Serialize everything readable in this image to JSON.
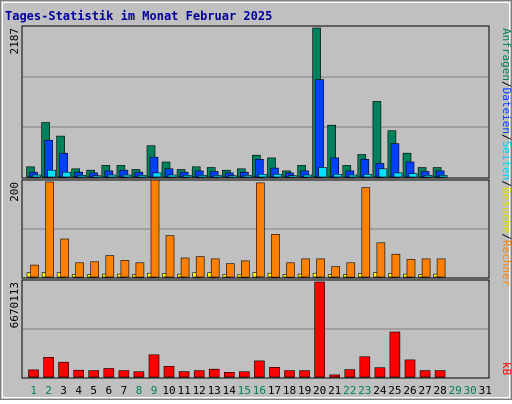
{
  "title": "Tages-Statistik im Monat Februar 2025",
  "colors": {
    "background": "#c0c0c0",
    "plot_background": "#c0c0c0",
    "grid": "#808080",
    "title": "#0000a0",
    "anfragen": "#00805c",
    "dateien": "#0040ff",
    "seiten": "#00e0ff",
    "besuche": "#ffff00",
    "rechner": "#ff8000",
    "kb": "#ff0000",
    "weekend_day": "#00805c",
    "weekday": "#000000"
  },
  "legend": {
    "top": [
      "Anfragen",
      "Dateien",
      "Seiten",
      "Besuche"
    ],
    "middle": [
      "Rechner"
    ],
    "bottom": [
      "kB"
    ],
    "separator": "/"
  },
  "chart_data": [
    {
      "type": "bar",
      "panel": "top",
      "ymax_label": "2187",
      "ylim": [
        0,
        2187
      ],
      "categories": [
        "1",
        "2",
        "3",
        "4",
        "5",
        "6",
        "7",
        "8",
        "9",
        "10",
        "11",
        "12",
        "13",
        "14",
        "15",
        "16",
        "17",
        "18",
        "19",
        "20",
        "21",
        "22",
        "23",
        "24",
        "25",
        "26",
        "27",
        "28",
        "29",
        "30",
        "31"
      ],
      "series": [
        {
          "name": "Anfragen",
          "values": [
            150,
            800,
            600,
            120,
            100,
            170,
            170,
            110,
            460,
            220,
            110,
            150,
            140,
            100,
            120,
            320,
            280,
            90,
            170,
            2187,
            760,
            170,
            330,
            1110,
            680,
            350,
            140,
            140,
            0,
            0,
            0
          ]
        },
        {
          "name": "Dateien",
          "values": [
            70,
            540,
            350,
            70,
            60,
            90,
            100,
            70,
            290,
            120,
            70,
            90,
            80,
            60,
            70,
            260,
            130,
            60,
            90,
            1430,
            280,
            90,
            260,
            200,
            490,
            220,
            80,
            90,
            0,
            0,
            0
          ]
        },
        {
          "name": "Seiten",
          "values": [
            30,
            100,
            70,
            25,
            20,
            30,
            30,
            25,
            60,
            30,
            25,
            25,
            25,
            20,
            25,
            40,
            40,
            20,
            30,
            140,
            40,
            30,
            40,
            120,
            60,
            50,
            25,
            25,
            0,
            0,
            0
          ]
        }
      ]
    },
    {
      "type": "bar",
      "panel": "middle",
      "ymax_label": "200",
      "ylim": [
        0,
        200
      ],
      "categories": [
        "1",
        "2",
        "3",
        "4",
        "5",
        "6",
        "7",
        "8",
        "9",
        "10",
        "11",
        "12",
        "13",
        "14",
        "15",
        "16",
        "17",
        "18",
        "19",
        "20",
        "21",
        "22",
        "23",
        "24",
        "25",
        "26",
        "27",
        "28",
        "29",
        "30",
        "31"
      ],
      "series": [
        {
          "name": "Besuche",
          "values": [
            9,
            9,
            9,
            5,
            5,
            6,
            6,
            5,
            8,
            7,
            6,
            9,
            9,
            5,
            5,
            9,
            8,
            5,
            6,
            8,
            5,
            5,
            7,
            9,
            7,
            6,
            5,
            6,
            0,
            0,
            0
          ]
        },
        {
          "name": "Rechner",
          "values": [
            25,
            200,
            80,
            30,
            32,
            45,
            35,
            30,
            204,
            87,
            40,
            43,
            38,
            28,
            34,
            198,
            90,
            30,
            38,
            38,
            22,
            30,
            188,
            72,
            48,
            37,
            38,
            38,
            0,
            0,
            0
          ]
        }
      ]
    },
    {
      "type": "bar",
      "panel": "bottom",
      "ymax_label": "6670113",
      "ylim": [
        0,
        6670113
      ],
      "categories": [
        "1",
        "2",
        "3",
        "4",
        "5",
        "6",
        "7",
        "8",
        "9",
        "10",
        "11",
        "12",
        "13",
        "14",
        "15",
        "16",
        "17",
        "18",
        "19",
        "20",
        "21",
        "22",
        "23",
        "24",
        "25",
        "26",
        "27",
        "28",
        "29",
        "30",
        "31"
      ],
      "series": [
        {
          "name": "kB",
          "values": [
            500000,
            1380000,
            1040000,
            480000,
            450000,
            600000,
            450000,
            370000,
            1560000,
            750000,
            380000,
            450000,
            550000,
            330000,
            370000,
            1130000,
            680000,
            450000,
            450000,
            6670113,
            150000,
            520000,
            1420000,
            650000,
            3160000,
            1200000,
            450000,
            450000,
            0,
            0,
            0
          ]
        }
      ]
    }
  ],
  "x_labels": {
    "days": [
      "1",
      "2",
      "3",
      "4",
      "5",
      "6",
      "7",
      "8",
      "9",
      "10",
      "11",
      "12",
      "13",
      "14",
      "15",
      "16",
      "17",
      "18",
      "19",
      "20",
      "21",
      "22",
      "23",
      "24",
      "25",
      "26",
      "27",
      "28",
      "29",
      "30",
      "31"
    ],
    "weekend": [
      "1",
      "2",
      "8",
      "9",
      "15",
      "16",
      "22",
      "23",
      "29",
      "30"
    ]
  }
}
